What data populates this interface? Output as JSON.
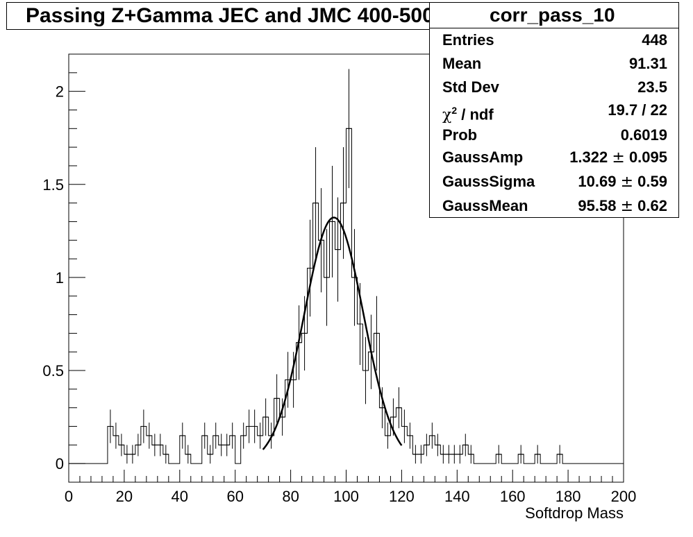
{
  "title": "Passing Z+Gamma JEC and JMC 400-500",
  "stats": {
    "name": "corr_pass_10",
    "rows": [
      {
        "label": "Entries",
        "value": "448"
      },
      {
        "label": "Mean",
        "value": "91.31"
      },
      {
        "label": "Std Dev",
        "value": "23.5"
      },
      {
        "label": "ndf",
        "value": "19.7 / 22"
      },
      {
        "label": "Prob",
        "value": "0.6019"
      },
      {
        "label": "GaussAmp",
        "value": "1.322",
        "error": "0.095"
      },
      {
        "label": "GaussSigma",
        "value": "10.69",
        "error": "0.59"
      },
      {
        "label": "GaussMean",
        "value": "95.58",
        "error": "0.62"
      }
    ],
    "chi_symbol": "χ",
    "chi_power": "2",
    "pm_symbol": "±"
  },
  "chart_data": {
    "type": "histogram",
    "xlabel": "Softdrop Mass",
    "ylabel": "",
    "xlim": [
      0,
      200
    ],
    "ylim": [
      -0.1,
      2.2
    ],
    "bin_width": 2,
    "x_ticks": [
      0,
      20,
      40,
      60,
      80,
      100,
      120,
      140,
      160,
      180,
      200
    ],
    "x_tick_labels": [
      "0",
      "20",
      "40",
      "60",
      "80",
      "100",
      "120",
      "140",
      "160",
      "180",
      "200"
    ],
    "y_ticks": [
      0,
      0.5,
      1,
      1.5,
      2
    ],
    "y_tick_labels": [
      "0",
      "0.5",
      "1",
      "1.5",
      "2"
    ],
    "bins": [
      [
        14,
        0.2,
        0.09
      ],
      [
        16,
        0.15,
        0.07
      ],
      [
        18,
        0.1,
        0.06
      ],
      [
        20,
        0.05,
        0.05
      ],
      [
        22,
        0.05,
        0.05
      ],
      [
        24,
        0.1,
        0.06
      ],
      [
        26,
        0.2,
        0.09
      ],
      [
        28,
        0.15,
        0.07
      ],
      [
        30,
        0.1,
        0.06
      ],
      [
        32,
        0.1,
        0.06
      ],
      [
        34,
        0.05,
        0.05
      ],
      [
        40,
        0.15,
        0.07
      ],
      [
        42,
        0.05,
        0.05
      ],
      [
        48,
        0.15,
        0.07
      ],
      [
        50,
        0.05,
        0.05
      ],
      [
        52,
        0.15,
        0.07
      ],
      [
        54,
        0.1,
        0.06
      ],
      [
        56,
        0.1,
        0.06
      ],
      [
        58,
        0.15,
        0.07
      ],
      [
        62,
        0.15,
        0.07
      ],
      [
        64,
        0.2,
        0.09
      ],
      [
        66,
        0.2,
        0.09
      ],
      [
        68,
        0.15,
        0.07
      ],
      [
        70,
        0.25,
        0.1
      ],
      [
        72,
        0.15,
        0.07
      ],
      [
        74,
        0.35,
        0.13
      ],
      [
        76,
        0.25,
        0.1
      ],
      [
        78,
        0.45,
        0.15
      ],
      [
        80,
        0.45,
        0.15
      ],
      [
        82,
        0.65,
        0.2
      ],
      [
        84,
        0.7,
        0.2
      ],
      [
        86,
        1.05,
        0.26
      ],
      [
        88,
        1.4,
        0.3
      ],
      [
        90,
        1.2,
        0.28
      ],
      [
        92,
        1.0,
        0.26
      ],
      [
        94,
        1.3,
        0.3
      ],
      [
        96,
        1.15,
        0.28
      ],
      [
        98,
        1.4,
        0.3
      ],
      [
        100,
        1.8,
        0.32
      ],
      [
        102,
        1.0,
        0.26
      ],
      [
        104,
        0.75,
        0.22
      ],
      [
        106,
        0.5,
        0.18
      ],
      [
        108,
        0.6,
        0.2
      ],
      [
        110,
        0.7,
        0.2
      ],
      [
        112,
        0.3,
        0.11
      ],
      [
        114,
        0.15,
        0.07
      ],
      [
        116,
        0.25,
        0.1
      ],
      [
        118,
        0.3,
        0.11
      ],
      [
        120,
        0.2,
        0.09
      ],
      [
        122,
        0.15,
        0.07
      ],
      [
        124,
        0.05,
        0.05
      ],
      [
        126,
        0.05,
        0.05
      ],
      [
        128,
        0.1,
        0.06
      ],
      [
        130,
        0.15,
        0.07
      ],
      [
        132,
        0.1,
        0.06
      ],
      [
        134,
        0.05,
        0.05
      ],
      [
        136,
        0.05,
        0.05
      ],
      [
        138,
        0.05,
        0.05
      ],
      [
        140,
        0.05,
        0.05
      ],
      [
        142,
        0.1,
        0.06
      ],
      [
        144,
        0.05,
        0.05
      ],
      [
        154,
        0.05,
        0.05
      ],
      [
        162,
        0.05,
        0.05
      ],
      [
        168,
        0.05,
        0.05
      ],
      [
        176,
        0.05,
        0.05
      ]
    ],
    "fit": {
      "function": "gaus",
      "amp": 1.322,
      "mean": 95.58,
      "sigma": 10.69,
      "x_range": [
        70,
        120
      ]
    }
  }
}
